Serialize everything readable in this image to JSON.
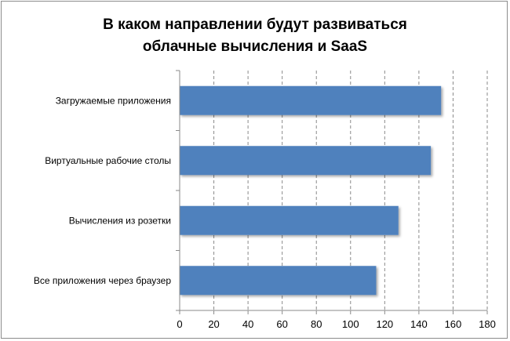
{
  "chart_data": {
    "type": "bar",
    "orientation": "horizontal",
    "title": "В каком направлении будут развиваться облачные вычисления и SaaS",
    "title_lines": [
      "В каком направлении будут развиваться",
      "облачные вычисления и SaaS"
    ],
    "categories": [
      "Загружаемые приложения",
      "Виртуальные рабочие столы",
      "Вычисления из розетки",
      "Все приложения через браузер"
    ],
    "values": [
      153,
      147,
      128,
      115
    ],
    "xlim": [
      0,
      180
    ],
    "xticks": [
      0,
      20,
      40,
      60,
      80,
      100,
      120,
      140,
      160,
      180
    ],
    "xlabel": "",
    "ylabel": "",
    "grid": "vertical-dashed",
    "legend": "none",
    "bar_color": "#4f81bd"
  }
}
